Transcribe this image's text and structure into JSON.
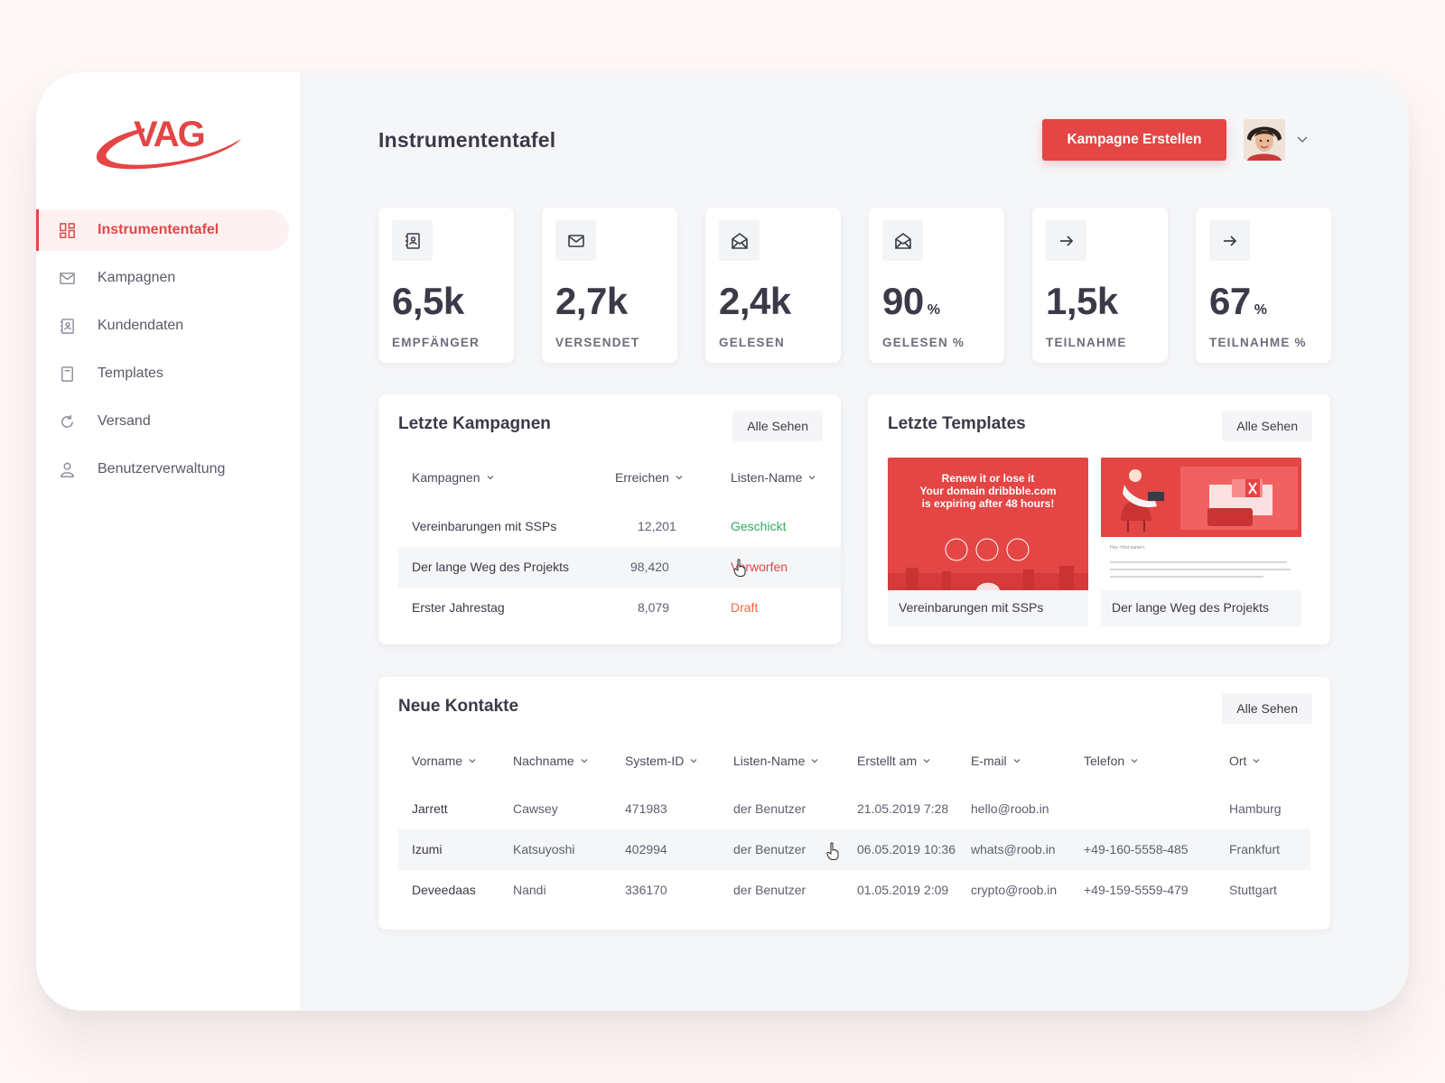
{
  "brand": {
    "logo_text": "VAG",
    "accent": "#e44545"
  },
  "sidebar": {
    "items": [
      {
        "label": "Instrumententafel",
        "icon": "grid-icon",
        "active": true
      },
      {
        "label": "Kampagnen",
        "icon": "mail-icon",
        "active": false
      },
      {
        "label": "Kundendaten",
        "icon": "contacts-book-icon",
        "active": false
      },
      {
        "label": "Templates",
        "icon": "template-icon",
        "active": false
      },
      {
        "label": "Versand",
        "icon": "refresh-icon",
        "active": false
      },
      {
        "label": "Benutzerverwaltung",
        "icon": "user-icon",
        "active": false
      }
    ]
  },
  "header": {
    "title": "Instrumententafel",
    "create_button": "Kampagne Erstellen"
  },
  "stats": [
    {
      "value": "6,5k",
      "unit": "",
      "label": "EMPFÄNGER",
      "icon": "contacts-book-icon"
    },
    {
      "value": "2,7k",
      "unit": "",
      "label": "VERSENDET",
      "icon": "mail-icon"
    },
    {
      "value": "2,4k",
      "unit": "",
      "label": "GELESEN",
      "icon": "open-mail-icon"
    },
    {
      "value": "90",
      "unit": "%",
      "label": "GELESEN %",
      "icon": "open-mail-icon"
    },
    {
      "value": "1,5k",
      "unit": "",
      "label": "TEILNAHME",
      "icon": "arrow-right-icon"
    },
    {
      "value": "67",
      "unit": "%",
      "label": "TEILNAHME %",
      "icon": "arrow-right-icon"
    }
  ],
  "campaigns": {
    "title": "Letzte Kampagnen",
    "see_all": "Alle Sehen",
    "columns": [
      "Kampagnen",
      "Erreichen",
      "Listen-Name"
    ],
    "rows": [
      {
        "name": "Vereinbarungen mit SSPs",
        "reach": "12,201",
        "status": "Geschickt",
        "status_color": "#2fae5c"
      },
      {
        "name": "Der lange Weg des Projekts",
        "reach": "98,420",
        "status": "Verworfen",
        "status_color": "#e44545"
      },
      {
        "name": "Erster Jahrestag",
        "reach": "8,079",
        "status": "Draft",
        "status_color": "#f0693e"
      }
    ]
  },
  "templates": {
    "title": "Letzte Templates",
    "see_all": "Alle Sehen",
    "items": [
      {
        "label": "Vereinbarungen mit SSPs",
        "preview_text": "Renew it or lose it\nYour domain dribbble.com\nis expiring after 48 hours!"
      },
      {
        "label": "Der lange Weg des Projekts",
        "preview_text": "Hey <first name>,"
      }
    ]
  },
  "contacts": {
    "title": "Neue Kontakte",
    "see_all": "Alle Sehen",
    "columns": [
      "Vorname",
      "Nachname",
      "System-ID",
      "Listen-Name",
      "Erstellt am",
      "E-mail",
      "Telefon",
      "Ort"
    ],
    "rows": [
      [
        "Jarrett",
        "Cawsey",
        "471983",
        "der Benutzer",
        "21.05.2019 7:28",
        "hello@roob.in",
        "",
        "Hamburg"
      ],
      [
        "Izumi",
        "Katsuyoshi",
        "402994",
        "der Benutzer",
        "06.05.2019 10:36",
        "whats@roob.in",
        "+49-160-5558-485",
        "Frankfurt"
      ],
      [
        "Deveedaas",
        "Nandi",
        "336170",
        "der Benutzer",
        "01.05.2019 2:09",
        "crypto@roob.in",
        "+49-159-5559-479",
        "Stuttgart"
      ]
    ]
  }
}
